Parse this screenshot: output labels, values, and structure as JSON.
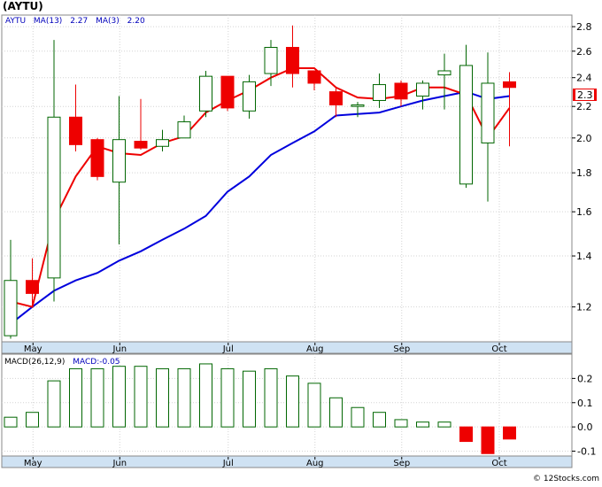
{
  "header": {
    "ticker_label": "(AYTU)"
  },
  "price_panel": {
    "legend": {
      "symbol": "AYTU",
      "ma13_label": "MA(13)",
      "ma13_value": "2.27",
      "ma3_label": "MA(3)",
      "ma3_value": "2.20"
    },
    "last_price_label": "2.3",
    "y_ticks": [
      "2.8",
      "2.6",
      "2.4",
      "2.2",
      "2.0",
      "1.8",
      "1.6",
      "1.4",
      "1.2"
    ]
  },
  "macd_panel": {
    "legend": {
      "label": "MACD(26,12,9)",
      "value_label": "MACD:-0.05"
    },
    "y_ticks": [
      "0.2",
      "0.1",
      "0.0",
      "-0.1"
    ]
  },
  "x_labels": [
    "May",
    "Jun",
    "Jul",
    "Aug",
    "Sep",
    "Oct"
  ],
  "watermark": "© 12Stocks.com",
  "colors": {
    "up": "#006600",
    "down": "#ee0000",
    "ma13": "#0000dd",
    "ma3": "#ee0000",
    "axis_band": "#cfe2f3",
    "grid": "#d3d3d3"
  },
  "chart_data": [
    {
      "type": "candlestick",
      "title": "(AYTU)",
      "y_scale": "log",
      "ylim": [
        1.08,
        2.9
      ],
      "x": [
        "Apr 29",
        "May 6",
        "May 13",
        "May 20",
        "May 27",
        "Jun 3",
        "Jun 10",
        "Jun 17",
        "Jun 24",
        "Jul 1",
        "Jul 8",
        "Jul 15",
        "Jul 22",
        "Jul 29",
        "Aug 5",
        "Aug 12",
        "Aug 19",
        "Aug 26",
        "Sep 2",
        "Sep 9",
        "Sep 16",
        "Sep 23",
        "Sep 30",
        "Oct 7"
      ],
      "open": [
        1.1,
        1.3,
        1.31,
        2.13,
        1.99,
        1.75,
        1.98,
        1.95,
        2.0,
        2.17,
        2.41,
        2.17,
        2.43,
        2.63,
        2.45,
        2.3,
        2.2,
        2.24,
        2.36,
        2.27,
        2.42,
        1.74,
        1.97,
        2.37
      ],
      "close": [
        1.3,
        1.25,
        2.13,
        1.96,
        1.78,
        1.99,
        1.94,
        1.99,
        2.1,
        2.41,
        2.19,
        2.37,
        2.63,
        2.43,
        2.36,
        2.21,
        2.21,
        2.35,
        2.25,
        2.36,
        2.45,
        2.49,
        2.36,
        2.33
      ],
      "high": [
        1.47,
        1.39,
        2.69,
        2.35,
        2.0,
        2.27,
        2.25,
        2.05,
        2.14,
        2.45,
        2.4,
        2.42,
        2.69,
        2.81,
        2.45,
        2.33,
        2.23,
        2.43,
        2.38,
        2.38,
        2.58,
        2.65,
        2.59,
        2.44
      ],
      "low": [
        1.09,
        1.2,
        1.22,
        1.92,
        1.76,
        1.45,
        1.93,
        1.92,
        2.0,
        2.13,
        2.17,
        2.12,
        2.34,
        2.33,
        2.31,
        2.13,
        2.13,
        2.19,
        2.2,
        2.18,
        2.18,
        1.72,
        1.65,
        1.95
      ],
      "series": [
        {
          "name": "MA(13)",
          "x_index": [
            0,
            1,
            2,
            3,
            4,
            5,
            6,
            7,
            8,
            9,
            10,
            11,
            12,
            13,
            14,
            15,
            16,
            17,
            18,
            19,
            20,
            21,
            22,
            23
          ],
          "values": [
            1.14,
            1.2,
            1.26,
            1.3,
            1.33,
            1.38,
            1.42,
            1.47,
            1.52,
            1.58,
            1.7,
            1.78,
            1.9,
            1.97,
            2.04,
            2.14,
            2.15,
            2.16,
            2.2,
            2.24,
            2.27,
            2.3,
            2.25,
            2.27
          ]
        },
        {
          "name": "MA(3)",
          "x_index": [
            0,
            1,
            2,
            3,
            4,
            5,
            6,
            7,
            8,
            9,
            10,
            11,
            12,
            13,
            14,
            15,
            16,
            17,
            18,
            19,
            20,
            21,
            22,
            23
          ],
          "values": [
            1.22,
            1.2,
            1.56,
            1.78,
            1.95,
            1.91,
            1.9,
            1.97,
            2.01,
            2.16,
            2.24,
            2.31,
            2.4,
            2.47,
            2.47,
            2.33,
            2.26,
            2.25,
            2.27,
            2.33,
            2.33,
            2.28,
            2.0,
            2.19
          ]
        }
      ]
    },
    {
      "type": "bar",
      "title": "MACD(26,12,9)",
      "ylim": [
        -0.12,
        0.3
      ],
      "x": [
        "Apr 29",
        "May 6",
        "May 13",
        "May 20",
        "May 27",
        "Jun 3",
        "Jun 10",
        "Jun 17",
        "Jun 24",
        "Jul 1",
        "Jul 8",
        "Jul 15",
        "Jul 22",
        "Jul 29",
        "Aug 5",
        "Aug 12",
        "Aug 19",
        "Aug 26",
        "Sep 2",
        "Sep 9",
        "Sep 16",
        "Sep 23",
        "Sep 30",
        "Oct 7"
      ],
      "values": [
        0.04,
        0.06,
        0.19,
        0.24,
        0.24,
        0.25,
        0.25,
        0.24,
        0.24,
        0.26,
        0.24,
        0.23,
        0.24,
        0.21,
        0.18,
        0.12,
        0.08,
        0.06,
        0.03,
        0.02,
        0.02,
        -0.06,
        -0.11,
        -0.05
      ]
    }
  ]
}
